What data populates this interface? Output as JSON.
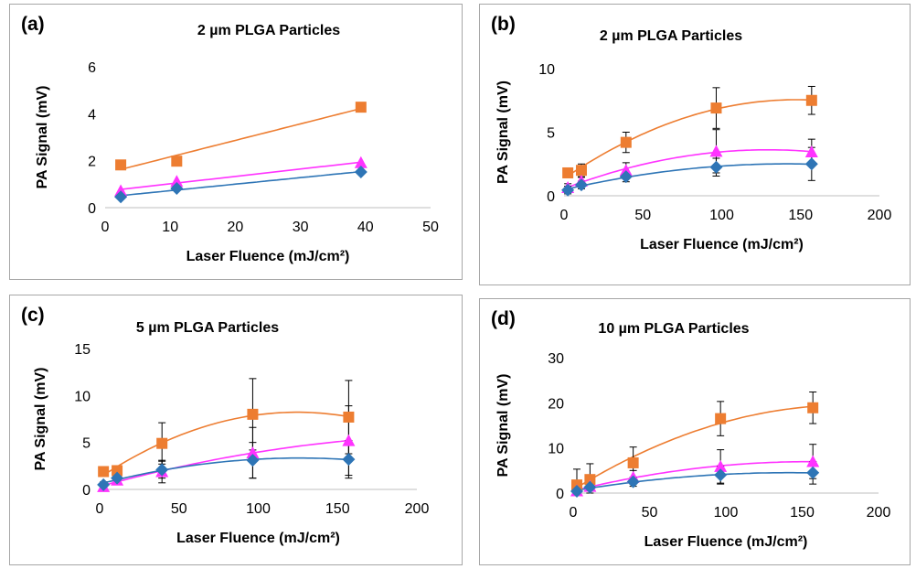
{
  "chart_data": [
    {
      "type": "scatter",
      "panel_label": "(a)",
      "title": "2 µm PLGA Particles",
      "xlabel": "Laser Fluence (mJ/cm²)",
      "ylabel": "PA Signal (mV)",
      "xlim": [
        0,
        50
      ],
      "xticks": [
        0,
        10,
        20,
        30,
        40,
        50
      ],
      "ylim": [
        0,
        6
      ],
      "yticks": [
        0,
        2,
        4,
        6
      ],
      "fit": "linear",
      "series": [
        {
          "color": "#ed7d31",
          "marker": "square",
          "x": [
            2.4,
            11,
            39.3
          ],
          "y": [
            1.82,
            1.98,
            4.28
          ]
        },
        {
          "color": "#ff33ff",
          "marker": "triangle",
          "x": [
            2.4,
            11,
            39.3
          ],
          "y": [
            0.72,
            1.12,
            1.92
          ]
        },
        {
          "color": "#2e75b6",
          "marker": "diamond",
          "x": [
            2.4,
            11,
            39.3
          ],
          "y": [
            0.46,
            0.82,
            1.52
          ]
        }
      ]
    },
    {
      "type": "scatter",
      "panel_label": "(b)",
      "title": "2 µm PLGA Particles",
      "xlabel": "Laser Fluence (mJ/cm²)",
      "ylabel": "PA Signal (mV)",
      "xlim": [
        0,
        200
      ],
      "xticks": [
        0,
        50,
        100,
        150,
        200
      ],
      "ylim": [
        0,
        10
      ],
      "yticks": [
        0,
        5,
        10
      ],
      "fit": "quadratic",
      "series": [
        {
          "color": "#ed7d31",
          "marker": "square",
          "x": [
            2.4,
            11,
            39.3,
            96.5,
            157
          ],
          "y": [
            1.8,
            2.0,
            4.2,
            6.9,
            7.5
          ],
          "err": [
            0.3,
            0.5,
            0.8,
            1.6,
            1.1
          ]
        },
        {
          "color": "#ff33ff",
          "marker": "triangle",
          "x": [
            2.4,
            11,
            39.3,
            96.5,
            157
          ],
          "y": [
            0.65,
            1.15,
            2.0,
            3.5,
            3.45
          ],
          "err": [
            0.3,
            0.3,
            0.6,
            1.7,
            1.0
          ]
        },
        {
          "color": "#2e75b6",
          "marker": "diamond",
          "x": [
            2.4,
            11,
            39.3,
            96.5,
            157
          ],
          "y": [
            0.45,
            0.85,
            1.5,
            2.25,
            2.5
          ],
          "err": [
            0.3,
            0.3,
            0.4,
            0.7,
            1.3
          ]
        }
      ]
    },
    {
      "type": "scatter",
      "panel_label": "(c)",
      "title": "5 µm PLGA Particles",
      "xlabel": "Laser Fluence (mJ/cm²)",
      "ylabel": "PA Signal (mV)",
      "xlim": [
        0,
        200
      ],
      "xticks": [
        0,
        50,
        100,
        150,
        200
      ],
      "ylim": [
        0,
        15
      ],
      "yticks": [
        0,
        5,
        10,
        15
      ],
      "fit": "quadratic",
      "series": [
        {
          "color": "#ed7d31",
          "marker": "square",
          "x": [
            2.4,
            11,
            39.3,
            96.5,
            157
          ],
          "y": [
            1.9,
            2.0,
            4.9,
            8.0,
            7.7
          ],
          "err": [
            0.4,
            0.5,
            2.2,
            3.8,
            3.9
          ]
        },
        {
          "color": "#ff33ff",
          "marker": "triangle",
          "x": [
            2.4,
            11,
            39.3,
            96.5,
            157
          ],
          "y": [
            0.3,
            1.0,
            1.9,
            3.9,
            5.2
          ],
          "err": [
            0.3,
            0.4,
            1.2,
            2.7,
            3.7
          ]
        },
        {
          "color": "#2e75b6",
          "marker": "diamond",
          "x": [
            2.4,
            11,
            39.3,
            96.5,
            157
          ],
          "y": [
            0.5,
            1.2,
            2.1,
            3.1,
            3.2
          ],
          "err": [
            0.3,
            0.4,
            0.9,
            1.9,
            2.0
          ]
        }
      ]
    },
    {
      "type": "scatter",
      "panel_label": "(d)",
      "title": "10 µm PLGA Particles",
      "xlabel": "Laser Fluence (mJ/cm²)",
      "ylabel": "PA Signal (mV)",
      "xlim": [
        0,
        200
      ],
      "xticks": [
        0,
        50,
        100,
        150,
        200
      ],
      "ylim": [
        0,
        30
      ],
      "yticks": [
        0,
        10,
        20,
        30
      ],
      "fit": "quadratic",
      "series": [
        {
          "color": "#ed7d31",
          "marker": "square",
          "x": [
            2.4,
            11,
            39.3,
            96.5,
            157
          ],
          "y": [
            1.8,
            3.0,
            6.7,
            16.5,
            18.9
          ],
          "err": [
            3.5,
            3.5,
            3.5,
            3.8,
            3.5
          ]
        },
        {
          "color": "#ff33ff",
          "marker": "triangle",
          "x": [
            2.4,
            11,
            39.3,
            96.5,
            157
          ],
          "y": [
            0.5,
            1.5,
            3.5,
            5.9,
            7.0
          ],
          "err": [
            1.0,
            1.0,
            1.5,
            3.7,
            3.8
          ]
        },
        {
          "color": "#2e75b6",
          "marker": "diamond",
          "x": [
            2.4,
            11,
            39.3,
            96.5,
            157
          ],
          "y": [
            0.4,
            1.3,
            2.5,
            4.0,
            4.5
          ],
          "err": [
            0.5,
            0.5,
            1.0,
            2.0,
            2.5
          ]
        }
      ]
    }
  ]
}
